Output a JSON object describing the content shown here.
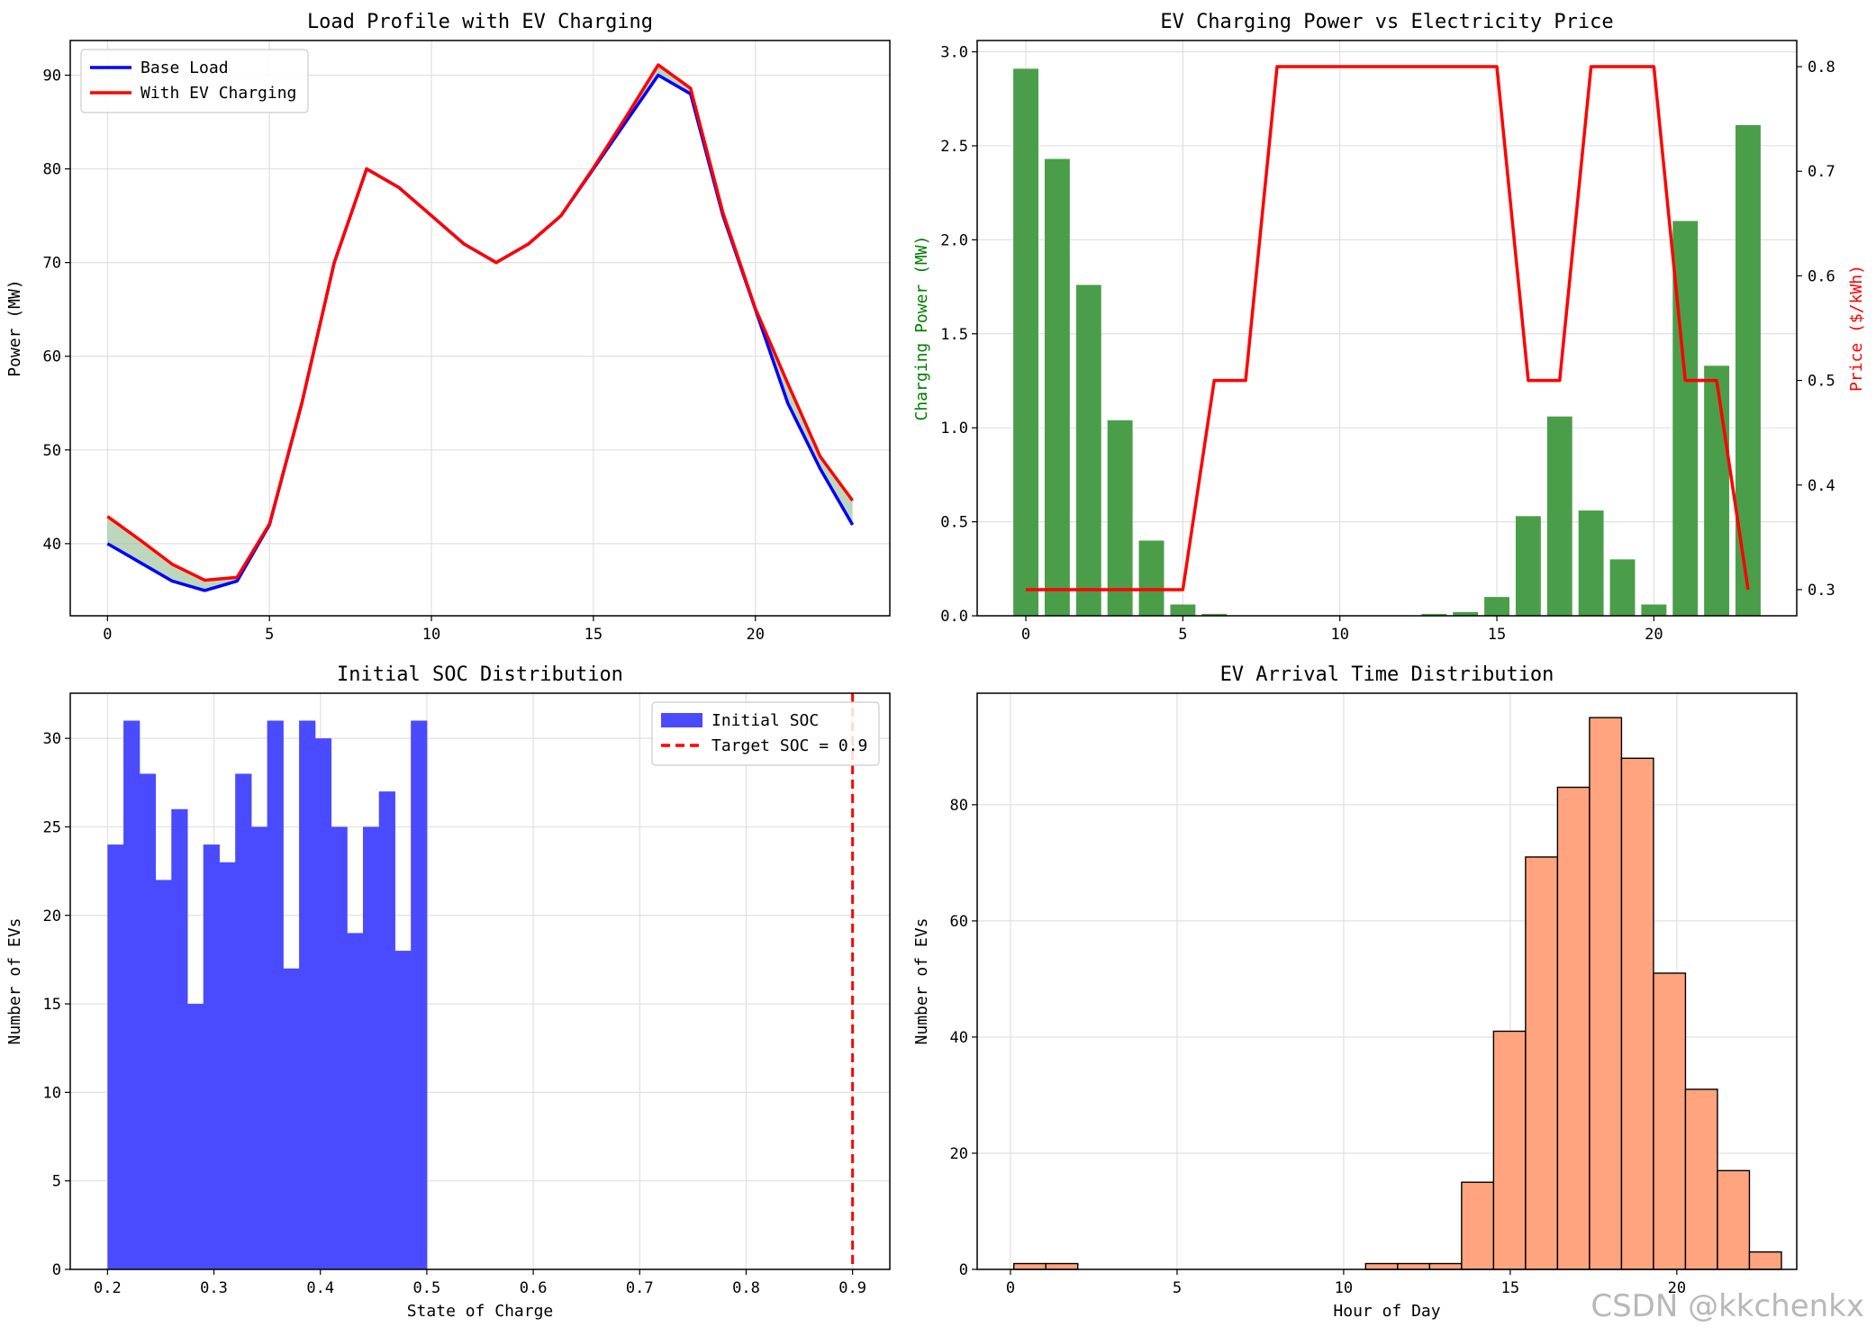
{
  "watermark": "CSDN @kkchenkx",
  "chart_data": [
    {
      "id": "load",
      "type": "line",
      "title": "Load Profile with EV Charging",
      "xlabel": "",
      "ylabel": "Power (MW)",
      "xlim": [
        -1.15,
        24.15
      ],
      "ylim": [
        32.3,
        93.7
      ],
      "xticks": [
        0,
        5,
        10,
        15,
        20
      ],
      "yticks": [
        40,
        50,
        60,
        70,
        80,
        90
      ],
      "grid": true,
      "legend_position": "top-left",
      "x": [
        0,
        1,
        2,
        3,
        4,
        5,
        6,
        7,
        8,
        9,
        10,
        11,
        12,
        13,
        14,
        15,
        16,
        17,
        18,
        19,
        20,
        21,
        22,
        23
      ],
      "fill_between": {
        "lower": "Base Load",
        "upper": "With EV Charging",
        "color": "#8fbc8f"
      },
      "series": [
        {
          "name": "Base Load",
          "color": "#0000ff",
          "values": [
            40,
            38,
            36,
            35,
            36,
            42,
            55,
            70,
            80,
            78,
            75,
            72,
            70,
            72,
            75,
            80,
            85,
            90,
            88,
            75,
            65,
            55,
            48,
            42
          ]
        },
        {
          "name": "With EV Charging",
          "color": "#ff0000",
          "values": [
            42.9,
            40.4,
            37.8,
            36.1,
            36.4,
            42.1,
            55,
            70,
            80,
            78,
            75,
            72,
            70,
            72,
            75,
            80.1,
            85.5,
            91.1,
            88.6,
            75.3,
            65.1,
            57.1,
            49.3,
            44.6
          ]
        }
      ]
    },
    {
      "id": "power_price",
      "type": "bar",
      "title": "EV Charging Power vs Electricity Price",
      "xlabel": "",
      "ylabel": "Charging Power (MW)",
      "ylabel_color": "#008000",
      "y2label": "Price ($/kWh)",
      "y2label_color": "#ff0000",
      "xlim": [
        -1.55,
        24.55
      ],
      "ylim": [
        0,
        3.06
      ],
      "y2lim": [
        0.275,
        0.825
      ],
      "xticks": [
        0,
        5,
        10,
        15,
        20
      ],
      "yticks": [
        0.0,
        0.5,
        1.0,
        1.5,
        2.0,
        2.5,
        3.0
      ],
      "y2ticks": [
        0.3,
        0.4,
        0.5,
        0.6,
        0.7,
        0.8
      ],
      "grid": true,
      "x": [
        0,
        1,
        2,
        3,
        4,
        5,
        6,
        7,
        8,
        9,
        10,
        11,
        12,
        13,
        14,
        15,
        16,
        17,
        18,
        19,
        20,
        21,
        22,
        23
      ],
      "series": [
        {
          "name": "Charging Power",
          "axis": "left",
          "kind": "bar",
          "color": "#4a9e4a",
          "values": [
            2.91,
            2.43,
            1.76,
            1.04,
            0.4,
            0.06,
            0.01,
            0,
            0,
            0,
            0,
            0,
            0,
            0.01,
            0.02,
            0.1,
            0.53,
            1.06,
            0.56,
            0.3,
            0.06,
            2.1,
            1.33,
            2.61
          ]
        },
        {
          "name": "Price",
          "axis": "right",
          "kind": "line",
          "color": "#ff0000",
          "values": [
            0.3,
            0.3,
            0.3,
            0.3,
            0.3,
            0.3,
            0.5,
            0.5,
            0.8,
            0.8,
            0.8,
            0.8,
            0.8,
            0.8,
            0.8,
            0.8,
            0.5,
            0.5,
            0.8,
            0.8,
            0.8,
            0.5,
            0.5,
            0.3
          ]
        }
      ]
    },
    {
      "id": "soc",
      "type": "histogram",
      "title": "Initial SOC Distribution",
      "xlabel": "State of Charge",
      "ylabel": "Number of EVs",
      "xlim": [
        0.165,
        0.935
      ],
      "ylim": [
        0,
        32.55
      ],
      "xticks": [
        0.2,
        0.3,
        0.4,
        0.5,
        0.6,
        0.7,
        0.8,
        0.9
      ],
      "yticks": [
        0,
        5,
        10,
        15,
        20,
        25,
        30
      ],
      "grid": true,
      "legend_position": "top-right",
      "bin_start": 0.2,
      "bin_width": 0.015,
      "color": "#4a4aff",
      "name": "Initial SOC",
      "values": [
        24,
        31,
        28,
        22,
        26,
        15,
        24,
        23,
        28,
        25,
        31,
        17,
        31,
        30,
        25,
        19,
        25,
        27,
        18,
        31
      ],
      "vline": {
        "x": 0.9,
        "color": "#ff0000",
        "label": "Target SOC = 0.9"
      }
    },
    {
      "id": "arrival",
      "type": "histogram",
      "title": "EV Arrival Time Distribution",
      "xlabel": "Hour of Day",
      "ylabel": "Number of EVs",
      "xlim": [
        -1.0,
        23.6
      ],
      "ylim": [
        0,
        99.2
      ],
      "xticks": [
        0,
        5,
        10,
        15,
        20
      ],
      "yticks": [
        0,
        20,
        40,
        60,
        80
      ],
      "grid": true,
      "bin_start": 0.1,
      "bin_width": 0.96,
      "color": "#ffa47e",
      "edgecolor": "#000000",
      "values": [
        1,
        1,
        0,
        0,
        0,
        0,
        0,
        0,
        0,
        0,
        0,
        1,
        1,
        1,
        15,
        41,
        71,
        83,
        95,
        88,
        51,
        31,
        17,
        3
      ]
    }
  ]
}
